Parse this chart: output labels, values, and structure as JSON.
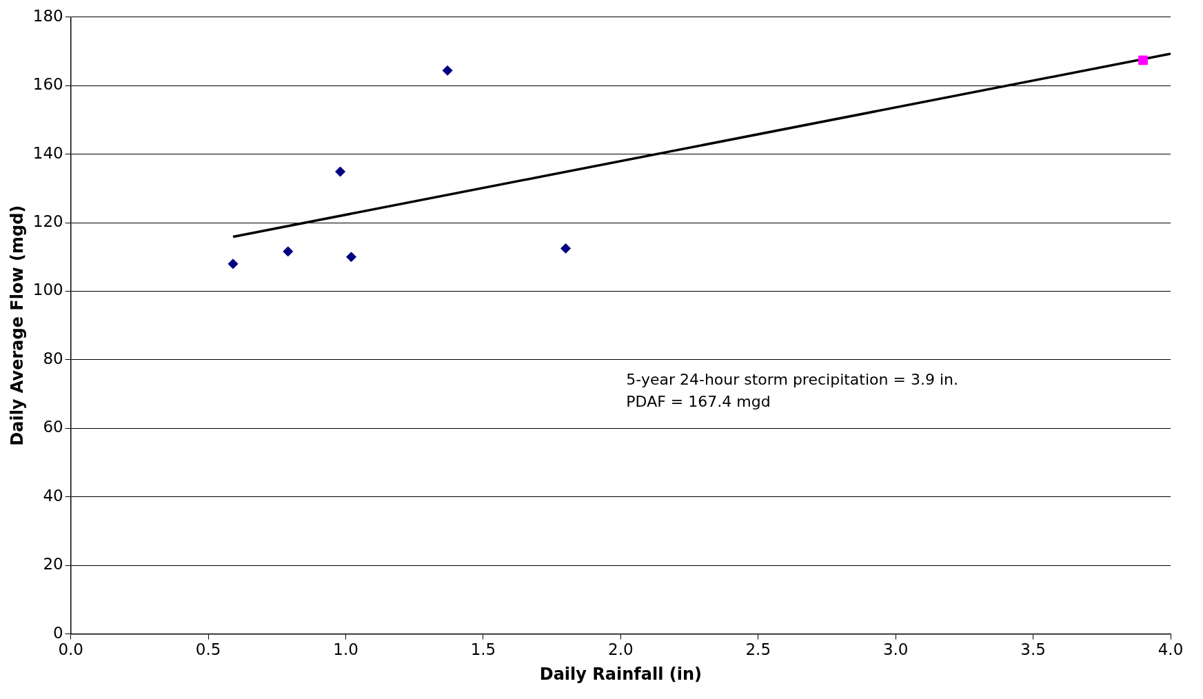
{
  "chart_data": {
    "type": "scatter",
    "xlabel": "Daily Rainfall (in)",
    "ylabel": "Daily Average Flow (mgd)",
    "xlim": [
      0,
      4
    ],
    "xticks": [
      {
        "value": 0,
        "label": "0.0"
      },
      0.5,
      {
        "value": 1,
        "label": "1.0"
      },
      1.5,
      {
        "value": 2,
        "label": "2.0"
      },
      2.5,
      {
        "value": 3,
        "label": "3.0"
      },
      3.5,
      {
        "value": 4,
        "label": "4.0"
      }
    ],
    "ylim": [
      0,
      180
    ],
    "yticks": [
      0,
      20,
      40,
      60,
      80,
      100,
      120,
      140,
      160,
      180
    ],
    "grid": "y",
    "legend": false,
    "series": [
      {
        "marker": "diamond",
        "color": "#000080",
        "x": [
          0.59,
          0.79,
          0.98,
          1.02,
          1.37,
          1.8
        ],
        "values": [
          108,
          111.6,
          134.9,
          110,
          164.4,
          112.5
        ]
      },
      {
        "marker": "square",
        "color": "#ff00ff",
        "x": [
          3.9
        ],
        "values": [
          167.4
        ]
      },
      {
        "type": "line",
        "marker": "none",
        "color": "#000000",
        "x": [
          0.59,
          4
        ],
        "values": [
          115.9,
          169.3
        ]
      }
    ],
    "annotations": [
      "5-year 24-hour storm precipitation = 3.9 in.",
      "PDAF = 167.4 mgd"
    ]
  }
}
